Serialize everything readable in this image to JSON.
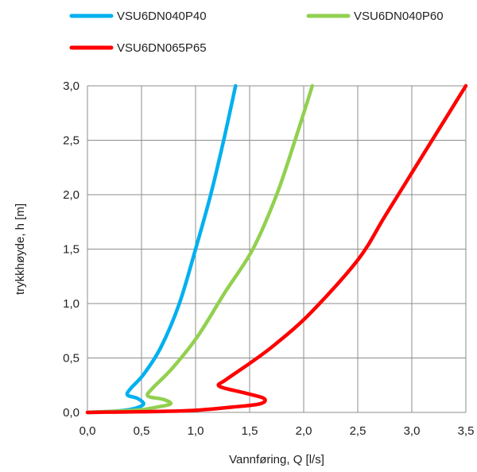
{
  "chart_data": {
    "type": "line",
    "xlabel": "Vannføring, Q [l/s]",
    "ylabel": "trykkhøyde, h  [m]",
    "xlim": [
      0,
      3.5
    ],
    "ylim": [
      0,
      3.0
    ],
    "x_ticks": [
      "0,0",
      "0,5",
      "1,0",
      "1,5",
      "2,0",
      "2,5",
      "3,0",
      "3,5"
    ],
    "y_ticks": [
      "0,0",
      "0,5",
      "1,0",
      "1,5",
      "2,0",
      "2,5",
      "3,0"
    ],
    "grid": true,
    "legend_position": "top",
    "series": [
      {
        "name": "VSU6DN040P40",
        "color": "#00b0f0",
        "points": [
          [
            0,
            0
          ],
          [
            0.3,
            0.015
          ],
          [
            0.45,
            0.04
          ],
          [
            0.52,
            0.08
          ],
          [
            0.46,
            0.13
          ],
          [
            0.37,
            0.16
          ],
          [
            0.4,
            0.22
          ],
          [
            0.52,
            0.35
          ],
          [
            0.68,
            0.6
          ],
          [
            0.85,
            1.0
          ],
          [
            1.0,
            1.5
          ],
          [
            1.14,
            2.0
          ],
          [
            1.26,
            2.5
          ],
          [
            1.37,
            3.0
          ]
        ]
      },
      {
        "name": "VSU6DN040P60",
        "color": "#92d050",
        "points": [
          [
            0,
            0
          ],
          [
            0.45,
            0.02
          ],
          [
            0.65,
            0.05
          ],
          [
            0.77,
            0.08
          ],
          [
            0.7,
            0.12
          ],
          [
            0.56,
            0.15
          ],
          [
            0.6,
            0.22
          ],
          [
            0.78,
            0.4
          ],
          [
            1.02,
            0.7
          ],
          [
            1.27,
            1.1
          ],
          [
            1.53,
            1.5
          ],
          [
            1.75,
            2.0
          ],
          [
            1.92,
            2.5
          ],
          [
            2.08,
            3.0
          ]
        ]
      },
      {
        "name": "VSU6DN065P65",
        "color": "#ff0000",
        "points": [
          [
            0,
            0
          ],
          [
            0.9,
            0.015
          ],
          [
            1.35,
            0.05
          ],
          [
            1.6,
            0.08
          ],
          [
            1.63,
            0.13
          ],
          [
            1.45,
            0.18
          ],
          [
            1.22,
            0.24
          ],
          [
            1.28,
            0.3
          ],
          [
            1.5,
            0.45
          ],
          [
            1.73,
            0.62
          ],
          [
            2.05,
            0.9
          ],
          [
            2.5,
            1.4
          ],
          [
            2.75,
            1.8
          ],
          [
            3.0,
            2.2
          ],
          [
            3.25,
            2.6
          ],
          [
            3.5,
            3.0
          ]
        ]
      }
    ]
  }
}
